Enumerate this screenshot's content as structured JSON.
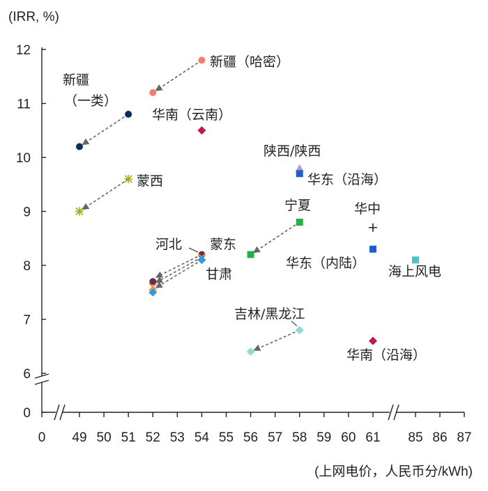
{
  "chart_data": {
    "type": "scatter",
    "ylabel": "(IRR, %)",
    "xlabel": "(上网电价，人民币分/kWh)",
    "x_ticks": [
      "0",
      "49",
      "50",
      "51",
      "52",
      "53",
      "54",
      "55",
      "56",
      "57",
      "58",
      "59",
      "60",
      "61",
      "85",
      "86",
      "87"
    ],
    "y_ticks": [
      "0",
      "6",
      "7",
      "8",
      "9",
      "10",
      "11",
      "12"
    ],
    "ylim": [
      6,
      12
    ],
    "grid": false,
    "axis_breaks": {
      "x": [
        "0-49",
        "61-85"
      ],
      "y": [
        "0-6"
      ]
    },
    "points": [
      {
        "name": "xj1_from",
        "x": 51,
        "y": 10.8,
        "color": "#0f2d5a",
        "shape": "circle"
      },
      {
        "name": "xj1_to",
        "x": 49,
        "y": 10.2,
        "color": "#0f2d5a",
        "shape": "circle"
      },
      {
        "name": "xjhm_from",
        "x": 54,
        "y": 11.8,
        "color": "#f07f70",
        "shape": "circle"
      },
      {
        "name": "xjhm_to",
        "x": 52,
        "y": 11.2,
        "color": "#f07f70",
        "shape": "circle"
      },
      {
        "name": "hnyn",
        "x": 54,
        "y": 10.5,
        "color": "#c0174e",
        "shape": "diamond"
      },
      {
        "name": "mx_from",
        "x": 51,
        "y": 9.6,
        "color": "#a8a818",
        "shape": "star"
      },
      {
        "name": "mx_to",
        "x": 49,
        "y": 9.0,
        "color": "#a8a818",
        "shape": "star"
      },
      {
        "name": "sx",
        "x": 58,
        "y": 9.8,
        "color": "#b89ad8",
        "shape": "triangle"
      },
      {
        "name": "hdyh",
        "x": 58,
        "y": 9.7,
        "color": "#1f5fc8",
        "shape": "square"
      },
      {
        "name": "nx_from",
        "x": 58,
        "y": 8.8,
        "color": "#22b04a",
        "shape": "square"
      },
      {
        "name": "nx_to",
        "x": 56,
        "y": 8.2,
        "color": "#22b04a",
        "shape": "square"
      },
      {
        "name": "hz",
        "x": 61,
        "y": 8.7,
        "color": "#222222",
        "shape": "plus"
      },
      {
        "name": "hdnl",
        "x": 61,
        "y": 8.3,
        "color": "#1f5fc8",
        "shape": "square"
      },
      {
        "name": "offshore",
        "x": 85,
        "y": 8.1,
        "color": "#4fc4c0",
        "shape": "square"
      },
      {
        "name": "hb_from",
        "x": 54,
        "y": 8.2,
        "color": "#6a2a5a",
        "shape": "circle"
      },
      {
        "name": "hb_to",
        "x": 52,
        "y": 7.7,
        "color": "#6a2a5a",
        "shape": "circle"
      },
      {
        "name": "md_from",
        "x": 54,
        "y": 8.15,
        "color": "#f08a38",
        "shape": "cross"
      },
      {
        "name": "md_to",
        "x": 52,
        "y": 7.6,
        "color": "#f08a38",
        "shape": "cross"
      },
      {
        "name": "gs_from",
        "x": 54,
        "y": 8.1,
        "color": "#2a9ee0",
        "shape": "diamond"
      },
      {
        "name": "gs_to",
        "x": 52,
        "y": 7.5,
        "color": "#2a9ee0",
        "shape": "diamond"
      },
      {
        "name": "jl_from",
        "x": 58,
        "y": 6.8,
        "color": "#8fdcd4",
        "shape": "diamond"
      },
      {
        "name": "jl_to",
        "x": 56,
        "y": 6.4,
        "color": "#8fdcd4",
        "shape": "diamond"
      },
      {
        "name": "hnyh",
        "x": 61,
        "y": 6.6,
        "color": "#c0174e",
        "shape": "diamond"
      }
    ],
    "arrows": [
      {
        "from": [
          51,
          10.8
        ],
        "to": [
          49,
          10.2
        ]
      },
      {
        "from": [
          54,
          11.8
        ],
        "to": [
          52,
          11.2
        ]
      },
      {
        "from": [
          51,
          9.6
        ],
        "to": [
          49,
          9.0
        ]
      },
      {
        "from": [
          58,
          8.8
        ],
        "to": [
          56,
          8.2
        ]
      },
      {
        "from": [
          54,
          8.2
        ],
        "to": [
          52,
          7.75
        ]
      },
      {
        "from": [
          54,
          8.15
        ],
        "to": [
          52,
          7.65
        ]
      },
      {
        "from": [
          54,
          8.1
        ],
        "to": [
          52,
          7.55
        ]
      },
      {
        "from": [
          58,
          6.8
        ],
        "to": [
          56,
          6.4
        ]
      }
    ],
    "annotations": [
      {
        "name": "xj1-a",
        "text": "新疆"
      },
      {
        "name": "xj1-b",
        "text": "（一类）"
      },
      {
        "name": "xjhm",
        "text": "新疆（哈密）"
      },
      {
        "name": "hnyn",
        "text": "华南（云南）"
      },
      {
        "name": "mx",
        "text": "蒙西"
      },
      {
        "name": "sx",
        "text": "陕西/陕西"
      },
      {
        "name": "hdyh",
        "text": "华东（沿海）"
      },
      {
        "name": "nx",
        "text": "宁夏"
      },
      {
        "name": "hz",
        "text": "华中"
      },
      {
        "name": "hb",
        "text": "河北"
      },
      {
        "name": "md",
        "text": "蒙东"
      },
      {
        "name": "gs",
        "text": "甘肃"
      },
      {
        "name": "hdnl",
        "text": "华东（内陆）"
      },
      {
        "name": "offshore",
        "text": "海上风电"
      },
      {
        "name": "jl",
        "text": "吉林/黑龙江"
      },
      {
        "name": "hnyh",
        "text": "华南（沿海）"
      }
    ]
  }
}
